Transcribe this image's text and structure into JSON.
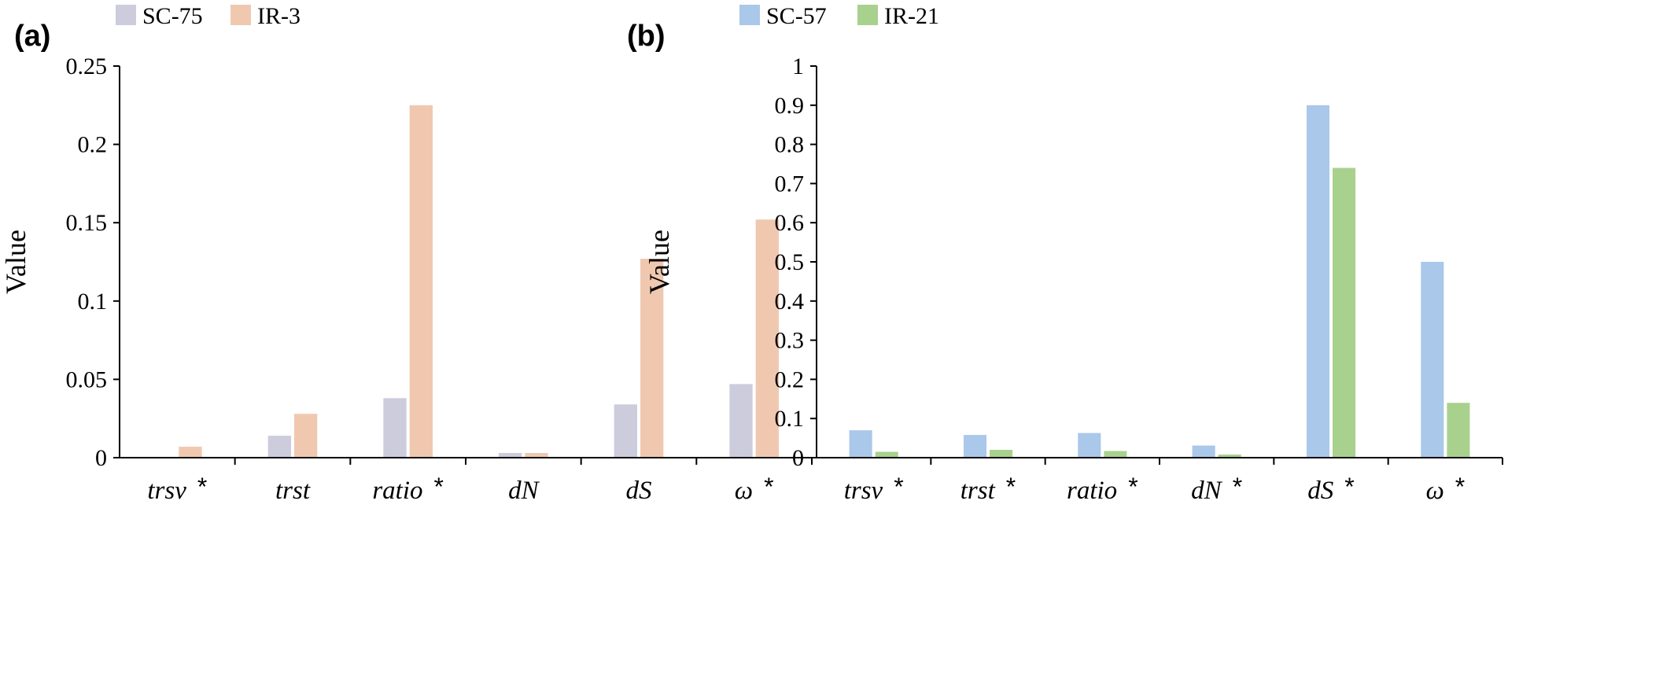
{
  "chart_data": [
    {
      "type": "bar",
      "panel_label": "(a)",
      "ylabel": "Value",
      "ylim": [
        0,
        0.25
      ],
      "yticks": [
        "0",
        "0.05",
        "0.1",
        "0.15",
        "0.2",
        "0.25"
      ],
      "legend_position": "top-left",
      "categories": [
        {
          "name": "trsv",
          "marker": "*"
        },
        {
          "name": "trst",
          "marker": ""
        },
        {
          "name": "ratio",
          "marker": "*"
        },
        {
          "name": "dN",
          "marker": ""
        },
        {
          "name": "dS",
          "marker": ""
        },
        {
          "name": "ω",
          "marker": "*"
        }
      ],
      "series": [
        {
          "name": "SC-75",
          "color": "#ccccdd",
          "values": [
            0.0,
            0.014,
            0.038,
            0.003,
            0.034,
            0.047
          ]
        },
        {
          "name": "IR-3",
          "color": "#f0c8b0",
          "values": [
            0.007,
            0.028,
            0.225,
            0.003,
            0.127,
            0.152
          ]
        }
      ]
    },
    {
      "type": "bar",
      "panel_label": "(b)",
      "ylabel": "Value",
      "ylim": [
        0,
        1
      ],
      "yticks": [
        "0",
        "0.1",
        "0.2",
        "0.3",
        "0.4",
        "0.5",
        "0.6",
        "0.7",
        "0.8",
        "0.9",
        "1"
      ],
      "legend_position": "top-left",
      "categories": [
        {
          "name": "trsv",
          "marker": "*"
        },
        {
          "name": "trst",
          "marker": "*"
        },
        {
          "name": "ratio",
          "marker": "*"
        },
        {
          "name": "dN",
          "marker": "*"
        },
        {
          "name": "dS",
          "marker": "*"
        },
        {
          "name": "ω",
          "marker": "*"
        }
      ],
      "series": [
        {
          "name": "SC-57",
          "color": "#a9c8ea",
          "values": [
            0.07,
            0.058,
            0.063,
            0.031,
            0.9,
            0.5
          ]
        },
        {
          "name": "IR-21",
          "color": "#a9d18e",
          "values": [
            0.015,
            0.02,
            0.017,
            0.008,
            0.74,
            0.14
          ]
        }
      ]
    }
  ]
}
